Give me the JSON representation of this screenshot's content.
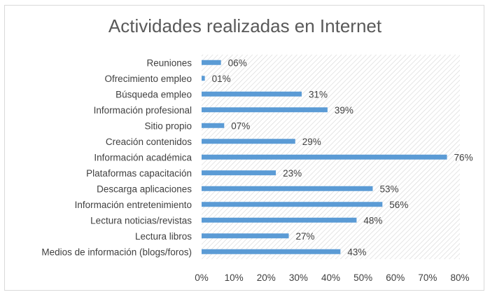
{
  "chart_data": {
    "type": "bar",
    "orientation": "horizontal",
    "title": "Actividades realizadas en Internet",
    "categories": [
      "Reuniones",
      "Ofrecimiento empleo",
      "Búsqueda empleo",
      "Información profesional",
      "Sitio propio",
      "Creación contenidos",
      "Información académica",
      "Plataformas capacitación",
      "Descarga aplicaciones",
      "Información entretenimiento",
      "Lectura noticias/revistas",
      "Lectura libros",
      "Medios de información (blogs/foros)"
    ],
    "values": [
      6,
      1,
      31,
      39,
      7,
      29,
      76,
      23,
      53,
      56,
      48,
      27,
      43
    ],
    "data_labels": [
      "06%",
      "01%",
      "31%",
      "39%",
      "07%",
      "29%",
      "76%",
      "23%",
      "53%",
      "56%",
      "48%",
      "27%",
      "43%"
    ],
    "xlim": [
      0,
      80
    ],
    "x_ticks": [
      0,
      10,
      20,
      30,
      40,
      50,
      60,
      70,
      80
    ],
    "x_tick_labels": [
      "0%",
      "10%",
      "20%",
      "30%",
      "40%",
      "50%",
      "60%",
      "70%",
      "80%"
    ],
    "xlabel": "",
    "ylabel": "",
    "grid": false,
    "legend": "none",
    "bar_color": "#5b9bd5",
    "plot_background": "hatched"
  }
}
